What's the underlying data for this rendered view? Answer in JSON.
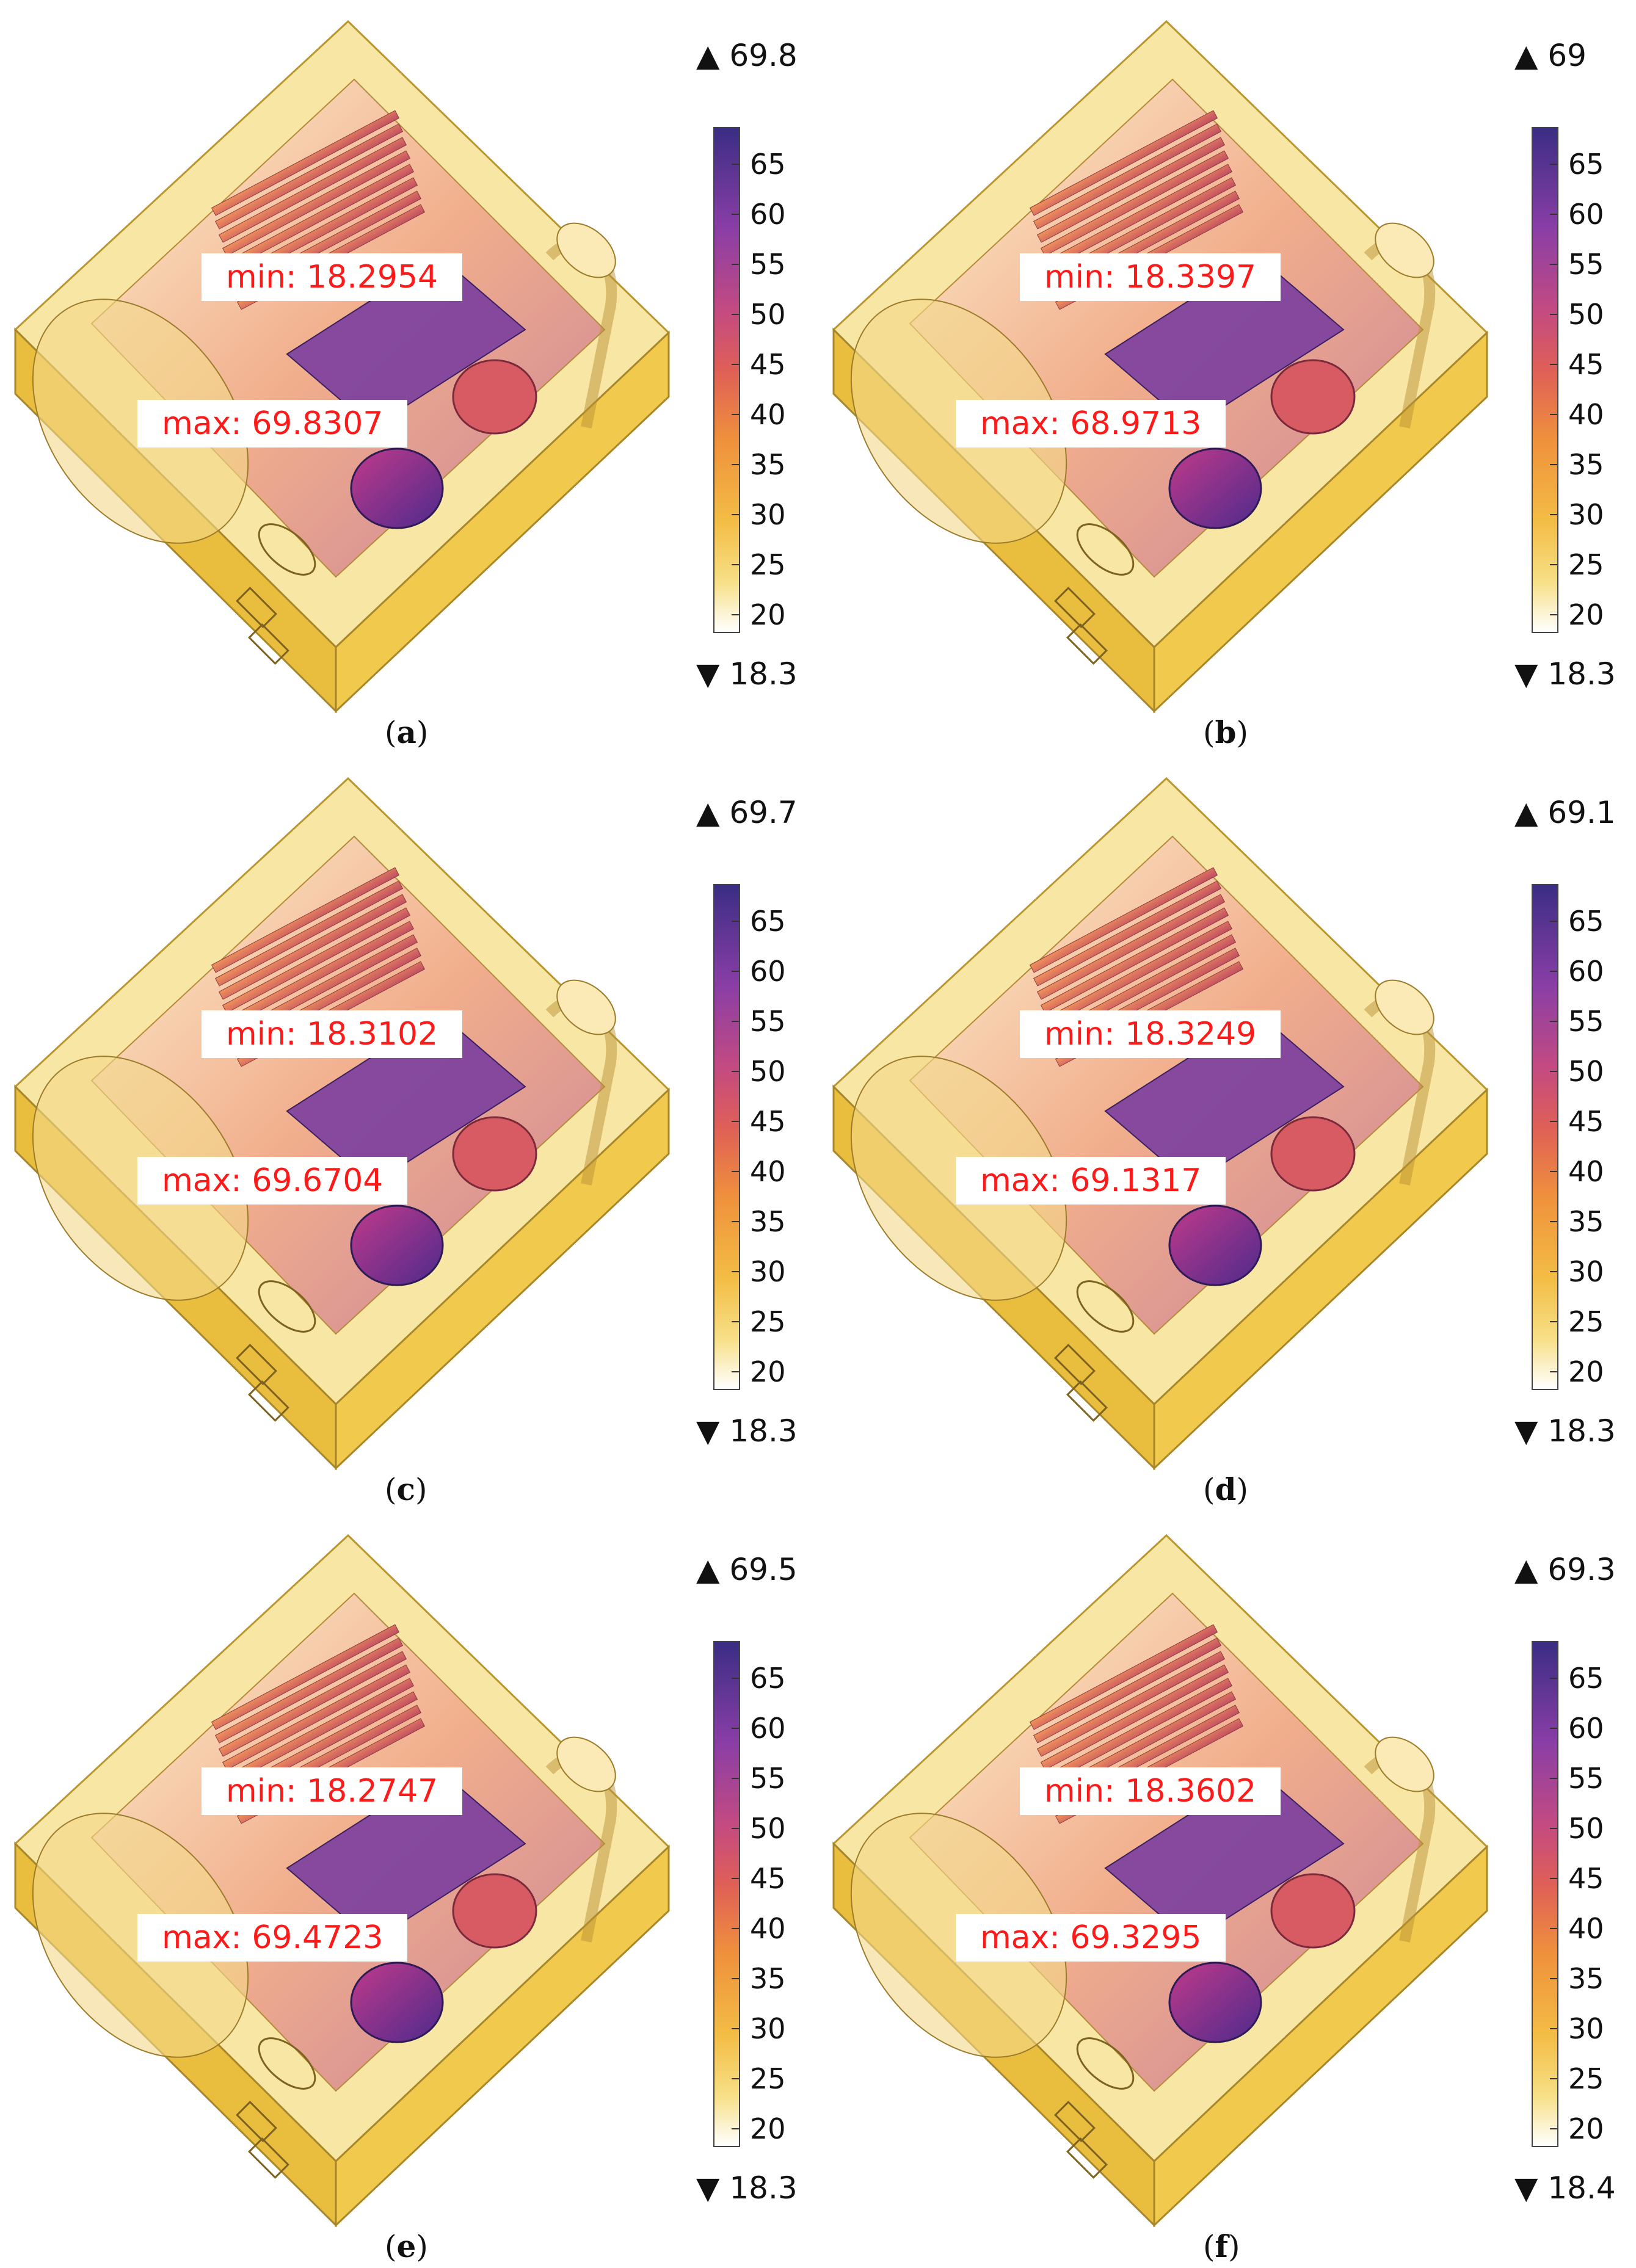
{
  "panels": [
    {
      "caption": "a",
      "top": "69.8",
      "bottom": "18.3",
      "min_label": "min: 18.2954",
      "max_label": "max: 69.8307"
    },
    {
      "caption": "b",
      "top": "69",
      "bottom": "18.3",
      "min_label": "min: 18.3397",
      "max_label": "max: 68.9713"
    },
    {
      "caption": "c",
      "top": "69.7",
      "bottom": "18.3",
      "min_label": "min: 18.3102",
      "max_label": "max: 69.6704"
    },
    {
      "caption": "d",
      "top": "69.1",
      "bottom": "18.3",
      "min_label": "min: 18.3249",
      "max_label": "max: 69.1317"
    },
    {
      "caption": "e",
      "top": "69.5",
      "bottom": "18.3",
      "min_label": "min: 18.2747",
      "max_label": "max: 69.4723"
    },
    {
      "caption": "f",
      "top": "69.3",
      "bottom": "18.4",
      "min_label": "min: 18.3602",
      "max_label": "max: 69.3295"
    }
  ],
  "colorbar_ticks": [
    "65",
    "60",
    "55",
    "50",
    "45",
    "40",
    "35",
    "30",
    "25",
    "20"
  ],
  "colors": {
    "label_text": "#ff1a1a",
    "box_light": "#f7dc78",
    "box_dark": "#e3b73a",
    "heat_high": "#3b2d84",
    "heat_mid": "#df5f57",
    "heat_low": "#ffffff"
  }
}
